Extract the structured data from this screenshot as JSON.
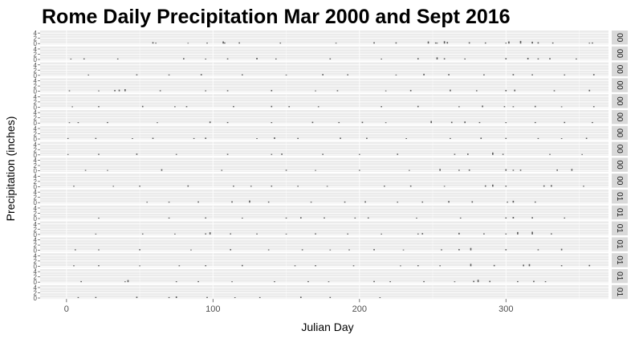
{
  "chart_data": {
    "type": "bar",
    "title": "Rome Daily Precipitation Mar 2000 and Sept 2016",
    "xlabel": "Julian Day",
    "ylabel": "Precipitation (inches)",
    "x_ticks": [
      "0",
      "100",
      "200",
      "300"
    ],
    "xlim": [
      -18,
      370
    ],
    "y_ticks_per_panel": [
      "0",
      "2",
      "4"
    ],
    "ylim_per_panel": [
      0,
      4.6
    ],
    "facet_strip_labels": [
      "00",
      "00",
      "00",
      "00",
      "00",
      "00",
      "00",
      "00",
      "00",
      "00",
      "01",
      "01",
      "01",
      "01",
      "01",
      "01",
      "01"
    ],
    "grid": true,
    "panels": [
      {
        "days": [
          59,
          61,
          83,
          96,
          107,
          108,
          118,
          146,
          184,
          210,
          225,
          247,
          252,
          253,
          258,
          260,
          275,
          286,
          300,
          302,
          310,
          318,
          322,
          332,
          357,
          359
        ],
        "values": [
          0.55,
          0.3,
          0.25,
          0.35,
          0.8,
          0.4,
          0.45,
          0.35,
          0.3,
          0.5,
          0.45,
          0.8,
          0.4,
          0.3,
          0.9,
          0.6,
          0.5,
          0.4,
          0.3,
          0.8,
          1.0,
          0.7,
          0.5,
          0.4,
          0.3,
          0.4
        ]
      },
      {
        "days": [
          3,
          12,
          35,
          80,
          95,
          110,
          130,
          143,
          180,
          215,
          240,
          253,
          258,
          272,
          300,
          315,
          322,
          330,
          348
        ],
        "values": [
          0.3,
          0.4,
          0.35,
          0.5,
          0.3,
          0.4,
          0.6,
          0.35,
          0.4,
          0.3,
          0.5,
          0.8,
          0.45,
          0.35,
          0.5,
          0.6,
          0.4,
          0.5,
          0.35
        ]
      },
      {
        "days": [
          15,
          48,
          70,
          92,
          120,
          150,
          175,
          192,
          225,
          244,
          261,
          285,
          305,
          318,
          340,
          360
        ],
        "values": [
          0.3,
          0.4,
          0.35,
          0.5,
          0.4,
          0.3,
          0.5,
          0.4,
          0.3,
          0.6,
          0.5,
          0.4,
          0.5,
          0.4,
          0.35,
          0.5
        ]
      },
      {
        "days": [
          2,
          22,
          33,
          36,
          40,
          64,
          95,
          110,
          140,
          170,
          185,
          218,
          235,
          262,
          280,
          300,
          306,
          333,
          357
        ],
        "values": [
          0.35,
          0.3,
          0.5,
          0.6,
          0.8,
          0.4,
          0.35,
          0.4,
          0.5,
          0.3,
          0.4,
          0.3,
          0.5,
          0.6,
          0.4,
          0.5,
          0.6,
          0.4,
          0.55
        ]
      },
      {
        "days": [
          4,
          22,
          52,
          74,
          82,
          114,
          140,
          152,
          172,
          215,
          240,
          268,
          284,
          299,
          305,
          320,
          338,
          360
        ],
        "values": [
          0.3,
          0.4,
          0.5,
          0.35,
          0.4,
          0.45,
          0.5,
          0.4,
          0.35,
          0.4,
          0.5,
          0.35,
          0.6,
          0.4,
          0.35,
          0.5,
          0.3,
          0.4
        ]
      },
      {
        "days": [
          2,
          8,
          28,
          62,
          98,
          110,
          140,
          168,
          186,
          202,
          218,
          249,
          263,
          272,
          282,
          300,
          320,
          340,
          359
        ],
        "values": [
          0.3,
          0.35,
          0.4,
          0.3,
          0.6,
          0.4,
          0.35,
          0.5,
          0.4,
          0.5,
          0.3,
          0.8,
          0.5,
          0.6,
          0.4,
          0.35,
          0.4,
          0.45,
          0.4
        ]
      },
      {
        "days": [
          1,
          20,
          45,
          59,
          87,
          95,
          130,
          142,
          158,
          187,
          205,
          232,
          262,
          283,
          300,
          322,
          338,
          355
        ],
        "values": [
          0.35,
          0.4,
          0.3,
          0.45,
          0.35,
          0.5,
          0.3,
          0.6,
          0.4,
          0.5,
          0.45,
          0.3,
          0.35,
          0.5,
          0.4,
          0.35,
          0.3,
          0.45
        ]
      },
      {
        "days": [
          1,
          22,
          48,
          75,
          110,
          140,
          147,
          175,
          200,
          226,
          265,
          274,
          291,
          298,
          330,
          352
        ],
        "values": [
          0.3,
          0.4,
          0.5,
          0.35,
          0.4,
          0.35,
          0.5,
          0.4,
          0.35,
          0.45,
          0.4,
          0.5,
          0.9,
          0.4,
          0.35,
          0.3
        ]
      },
      {
        "days": [
          13,
          28,
          65,
          106,
          150,
          170,
          200,
          234,
          255,
          268,
          275,
          300,
          305,
          310,
          335,
          345
        ],
        "values": [
          0.35,
          0.3,
          0.6,
          0.35,
          0.4,
          0.3,
          0.35,
          0.3,
          0.7,
          0.4,
          0.5,
          0.6,
          0.4,
          0.45,
          0.5,
          0.7
        ]
      },
      {
        "days": [
          5,
          32,
          50,
          83,
          114,
          126,
          140,
          158,
          178,
          217,
          235,
          258,
          286,
          291,
          300,
          326,
          331,
          353
        ],
        "values": [
          0.35,
          0.3,
          0.4,
          0.5,
          0.4,
          0.35,
          0.4,
          0.35,
          0.3,
          0.4,
          0.45,
          0.3,
          0.5,
          0.8,
          0.4,
          0.5,
          0.6,
          0.35
        ]
      },
      {
        "days": [
          55,
          70,
          90,
          113,
          125,
          138,
          167,
          190,
          204,
          226,
          243,
          261,
          277,
          301,
          305,
          320
        ],
        "values": [
          0.3,
          0.35,
          0.45,
          0.5,
          0.8,
          0.4,
          0.35,
          0.4,
          0.5,
          0.35,
          0.4,
          0.6,
          0.5,
          0.35,
          0.7,
          0.4
        ]
      },
      {
        "days": [
          22,
          70,
          95,
          120,
          150,
          160,
          176,
          197,
          206,
          239,
          269,
          300,
          305,
          318,
          340
        ],
        "values": [
          0.3,
          0.35,
          0.4,
          0.3,
          0.35,
          0.5,
          0.4,
          0.35,
          0.4,
          0.3,
          0.35,
          0.4,
          0.6,
          0.5,
          0.35
        ]
      },
      {
        "days": [
          20,
          52,
          74,
          95,
          98,
          112,
          130,
          150,
          170,
          192,
          215,
          240,
          243,
          268,
          285,
          300,
          308,
          318,
          331
        ],
        "values": [
          0.3,
          0.35,
          0.3,
          0.4,
          0.8,
          0.4,
          0.35,
          0.3,
          0.4,
          0.35,
          0.3,
          0.35,
          0.5,
          0.6,
          0.4,
          0.35,
          0.9,
          1.0,
          0.4
        ]
      },
      {
        "days": [
          6,
          22,
          50,
          85,
          112,
          138,
          161,
          180,
          193,
          210,
          230,
          256,
          268,
          276,
          300,
          322,
          338
        ],
        "values": [
          0.4,
          0.35,
          0.45,
          0.3,
          0.5,
          0.35,
          0.4,
          0.3,
          0.35,
          0.5,
          0.3,
          0.4,
          0.5,
          0.9,
          0.45,
          0.4,
          0.6
        ]
      },
      {
        "days": [
          5,
          22,
          50,
          77,
          95,
          120,
          156,
          170,
          196,
          228,
          240,
          255,
          276,
          292,
          312,
          316,
          338,
          357
        ],
        "values": [
          0.35,
          0.4,
          0.3,
          0.35,
          0.4,
          0.5,
          0.35,
          0.4,
          0.35,
          0.3,
          0.4,
          0.35,
          0.9,
          0.5,
          0.6,
          0.8,
          0.4,
          0.5
        ]
      },
      {
        "days": [
          10,
          40,
          42,
          75,
          90,
          113,
          142,
          165,
          179,
          210,
          221,
          244,
          265,
          278,
          281,
          289,
          308,
          319,
          327
        ],
        "values": [
          0.4,
          0.3,
          0.8,
          0.35,
          0.4,
          0.3,
          0.35,
          0.4,
          0.3,
          0.45,
          0.35,
          0.4,
          0.3,
          0.5,
          0.9,
          0.5,
          0.4,
          0.5,
          0.35
        ]
      },
      {
        "days": [
          8,
          20,
          48,
          70,
          75,
          96,
          115,
          132,
          160,
          180,
          214
        ],
        "values": [
          0.35,
          0.4,
          0.5,
          0.35,
          0.6,
          0.4,
          0.3,
          0.35,
          0.5,
          0.4,
          0.3
        ]
      }
    ]
  }
}
